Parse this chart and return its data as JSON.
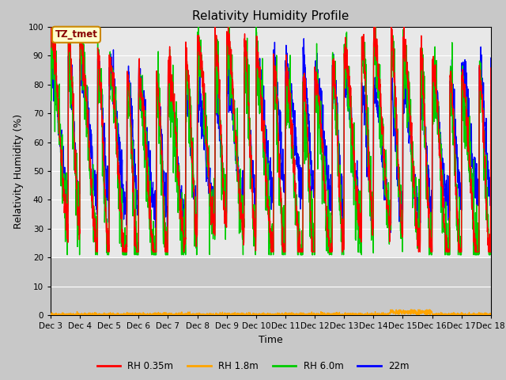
{
  "title": "Relativity Humidity Profile",
  "xlabel": "Time",
  "ylabel": "Relativity Humidity (%)",
  "ylim": [
    0,
    100
  ],
  "yticks": [
    0,
    10,
    20,
    30,
    40,
    50,
    60,
    70,
    80,
    90,
    100
  ],
  "x_labels": [
    "Dec 3",
    "Dec 4",
    "Dec 5",
    "Dec 6",
    "Dec 7",
    "Dec 8",
    "Dec 9",
    "Dec 10",
    "Dec 11",
    "Dec 12",
    "Dec 13",
    "Dec 14",
    "Dec 15",
    "Dec 16",
    "Dec 17",
    "Dec 18"
  ],
  "annotation_text": "TZ_tmet",
  "annotation_bg": "#ffffcc",
  "annotation_border": "#cc8800",
  "plot_bg_upper": "#e8e8e8",
  "plot_bg_lower": "#d0d0d0",
  "fig_bg": "#c8c8c8",
  "grid_color": "#ffffff",
  "colors": {
    "RH 0.35m": "#ff0000",
    "RH 1.8m": "#ffa500",
    "RH 6.0m": "#00cc00",
    "22m": "#0000ff"
  },
  "legend_labels": [
    "RH 0.35m",
    "RH 1.8m",
    "RH 6.0m",
    "22m"
  ],
  "n_days": 15,
  "pts_per_day": 144
}
